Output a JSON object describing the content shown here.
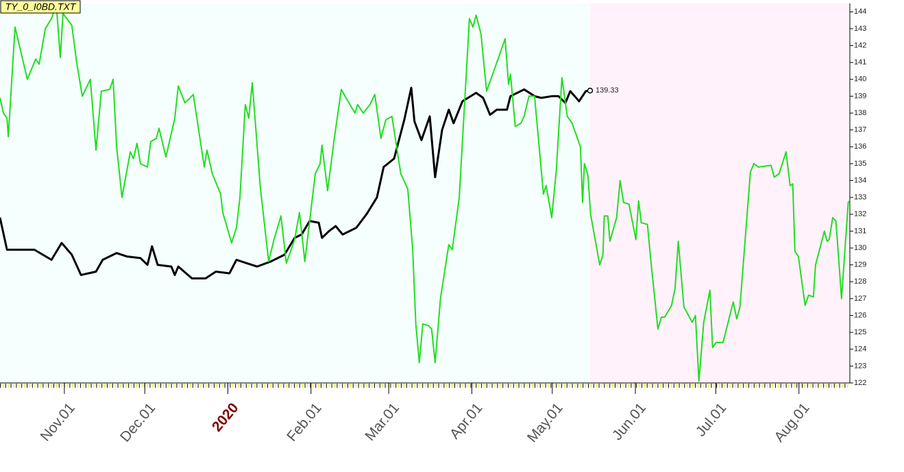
{
  "chart_data": {
    "type": "line",
    "title": "TY_0_I0BD.TXT",
    "xlim": [
      0,
      317
    ],
    "ylim": [
      122,
      144.5
    ],
    "yticks": [
      122,
      123,
      124,
      125,
      126,
      127,
      128,
      129,
      130,
      131,
      132,
      133,
      134,
      135,
      136,
      137,
      138,
      139,
      140,
      141,
      142,
      143,
      144
    ],
    "xticks": [
      {
        "value": 24,
        "label": "Nov.01"
      },
      {
        "value": 54,
        "label": "Dec.01"
      },
      {
        "value": 85,
        "label": "2020",
        "color": "#800000"
      },
      {
        "value": 116,
        "label": "Feb.01"
      },
      {
        "value": 145,
        "label": "Mar.01"
      },
      {
        "value": 176,
        "label": "Apr.01"
      },
      {
        "value": 206,
        "label": "May.01"
      },
      {
        "value": 237,
        "label": "Jun.01"
      },
      {
        "value": 267,
        "label": "Jul.01"
      },
      {
        "value": 298,
        "label": "Aug.01"
      }
    ],
    "regions": [
      {
        "from": 0,
        "to": 220.1,
        "color": "#f5fffd"
      },
      {
        "from": 220.1,
        "to": 317,
        "color": "#fff2fb"
      }
    ],
    "series": [
      {
        "color": "#000000",
        "width": 3,
        "x": [
          0,
          2.6,
          7.7,
          12.8,
          19.2,
          23,
          26.8,
          30.2,
          35.8,
          38.3,
          43.5,
          47.3,
          52.4,
          55,
          56.7,
          58.8,
          63.9,
          65.2,
          66.5,
          71.6,
          76.7,
          80.5,
          85.6,
          88.2,
          92,
          95.9,
          101,
          106.1,
          109.9,
          112.5,
          115.5,
          118.9,
          120.1,
          122.7,
          125.2,
          127.8,
          132.9,
          136.7,
          140.6,
          143.1,
          147,
          150.8,
          153.4,
          154.6,
          157.2,
          160.3,
          162.3,
          164.9,
          167.4,
          169.2,
          172.5,
          177.6,
          180.2,
          182.8,
          185.3,
          189.1,
          190.4,
          195.5,
          199.4,
          201.9,
          205.8,
          208.3,
          210.9,
          212.7,
          216,
          218.5,
          220.1
        ],
        "values": [
          131.8,
          129.9,
          129.9,
          129.9,
          129.3,
          130.3,
          129.6,
          128.4,
          128.6,
          129.3,
          129.7,
          129.5,
          129.4,
          129,
          130.1,
          129,
          128.9,
          128.4,
          128.9,
          128.2,
          128.2,
          128.6,
          128.5,
          129.3,
          129.1,
          128.9,
          129.2,
          129.6,
          130.6,
          130.8,
          131.6,
          131.5,
          130.6,
          131,
          131.3,
          130.8,
          131.2,
          132,
          133,
          134.8,
          135.3,
          137.6,
          139.5,
          137.5,
          136.4,
          137.8,
          134.2,
          137,
          138.2,
          137.4,
          138.7,
          139.2,
          138.9,
          137.9,
          138.2,
          138.2,
          139,
          139.4,
          139,
          138.9,
          139,
          139,
          138.6,
          139.3,
          138.7,
          139.3,
          139.33
        ]
      },
      {
        "color": "#22dd22",
        "width": 2,
        "x": [
          0,
          1.3,
          2.6,
          3.1,
          5.6,
          10.2,
          13.3,
          14.6,
          16.9,
          19.2,
          21,
          22.5,
          23.5,
          26.8,
          28.6,
          30.7,
          33.7,
          35.8,
          37.8,
          40.9,
          42.2,
          43.5,
          45.5,
          48.6,
          49.8,
          51.1,
          52.4,
          55,
          56.2,
          58.3,
          59.3,
          61.9,
          65.2,
          66.5,
          69,
          72.1,
          76.2,
          77.2,
          79.2,
          82.3,
          83.1,
          86.4,
          88.2,
          89.5,
          91.5,
          92.8,
          94.1,
          97.1,
          100.2,
          102.2,
          104.8,
          106.8,
          108.6,
          109.9,
          111.7,
          113.7,
          117.6,
          119.4,
          120.1,
          122.2,
          124.7,
          127.3,
          129.8,
          132.4,
          133.4,
          135.5,
          138,
          139.8,
          142.1,
          143.9,
          146.2,
          149.5,
          152.1,
          153.9,
          155.1,
          156.4,
          157.7,
          159.8,
          161,
          162.3,
          164.3,
          167.4,
          168.7,
          171.3,
          175.1,
          176.4,
          177.6,
          179.4,
          181.5,
          184,
          188.4,
          189.7,
          190.4,
          192.2,
          194.3,
          195.5,
          197.3,
          199.4,
          202.7,
          203.7,
          205.8,
          207.5,
          209.6,
          211.6,
          213.4,
          216.5,
          217.3,
          218,
          219.3,
          220.3,
          223.7,
          224.9,
          225.4,
          226.7,
          227.5,
          230,
          231.3,
          232.6,
          234.6,
          237.2,
          238.2,
          239.2,
          241.5,
          242.8,
          245.4,
          246.7,
          247.9,
          250.5,
          251.8,
          253,
          255.1,
          258.2,
          259.4,
          260.7,
          262.5,
          264.8,
          265.8,
          267.1,
          269.7,
          273.5,
          274.8,
          276,
          279.9,
          281.2,
          282.9,
          287.6,
          288.8,
          290.6,
          293.2,
          294.7,
          295.7,
          296.5,
          297.8,
          300.3,
          301.6,
          303.4,
          304.2,
          307.5,
          308.5,
          309.3,
          310.6,
          311.8,
          313.9,
          316.4,
          316.9
        ],
        "values": [
          138.9,
          138,
          137.7,
          136.6,
          143.1,
          140,
          141.2,
          140.9,
          143,
          143.6,
          144.4,
          141.3,
          143.9,
          143.2,
          141,
          139,
          140,
          135.8,
          139.3,
          139.4,
          140,
          136,
          133,
          135.7,
          135.3,
          136.2,
          135,
          134.8,
          136.3,
          136.5,
          137.1,
          135.4,
          137.7,
          139.6,
          138.6,
          139.1,
          134.8,
          135.8,
          134.4,
          133.2,
          132.1,
          130.3,
          131.2,
          133,
          138.5,
          137.7,
          139.8,
          133.6,
          129.2,
          130.5,
          131.9,
          129.1,
          129.9,
          130.5,
          132.1,
          129.2,
          134.4,
          135,
          136.1,
          133.4,
          136.5,
          139.4,
          138.7,
          138,
          138.5,
          138,
          138.5,
          139.1,
          136.5,
          137.6,
          137.8,
          134.4,
          133.5,
          130,
          125.5,
          123.2,
          125.5,
          125.4,
          125.2,
          123.2,
          127,
          130.2,
          129.9,
          133,
          143.6,
          143.1,
          143.8,
          142.7,
          139.3,
          140.4,
          142.4,
          139.7,
          140.3,
          137.2,
          137.4,
          137.8,
          139,
          139,
          133.2,
          133.7,
          131.8,
          134.6,
          140.1,
          137.8,
          137.4,
          136,
          132.7,
          135,
          134.3,
          132,
          129,
          129.6,
          131.9,
          131.9,
          130.4,
          131.8,
          134,
          132.7,
          132.6,
          130.5,
          132.8,
          131.5,
          131.4,
          129.2,
          125.2,
          125.9,
          125.9,
          126.6,
          127.6,
          130.4,
          126.5,
          125.6,
          126,
          122.1,
          125.6,
          127.5,
          124.1,
          124.4,
          124.4,
          126.8,
          125.8,
          126.5,
          134.5,
          135,
          134.8,
          134.9,
          134.2,
          134.4,
          135.7,
          133.7,
          133.8,
          129.8,
          129.5,
          126.6,
          127.2,
          127.1,
          129,
          131,
          130.4,
          130.5,
          131.8,
          131.6,
          127,
          132.7,
          132.8
        ]
      }
    ]
  }
}
